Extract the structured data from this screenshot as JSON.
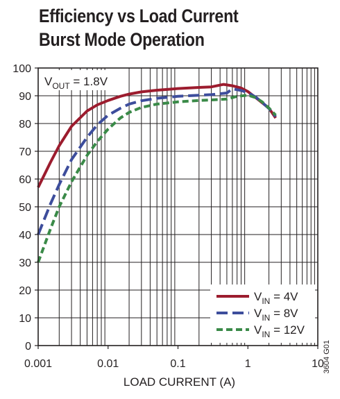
{
  "header": {
    "title_line1": "Efficiency vs Load Current",
    "title_line2": "Burst Mode Operation"
  },
  "chart_data": {
    "type": "line",
    "x_scale": "log",
    "xlim": [
      0.001,
      10
    ],
    "ylim": [
      0,
      100
    ],
    "grid": true,
    "xlabel": "LOAD CURRENT (A)",
    "ylabel": "",
    "x_ticks": [
      "0.001",
      "0.01",
      "0.1",
      "1",
      "10"
    ],
    "y_ticks": [
      "0",
      "10",
      "20",
      "30",
      "40",
      "50",
      "60",
      "70",
      "80",
      "90",
      "100"
    ],
    "annotation": {
      "prefix": "V",
      "sub": "OUT",
      "suffix": " = 1.8V"
    },
    "figure_id": "3604 G01",
    "legend_position": "bottom-right",
    "series": [
      {
        "name": "VIN = 4V",
        "name_prefix": "V",
        "name_sub": "IN",
        "name_suffix": " = 4V",
        "color": "#9c1c2e",
        "style": "solid",
        "x": [
          0.001,
          0.0015,
          0.002,
          0.003,
          0.005,
          0.007,
          0.01,
          0.015,
          0.02,
          0.03,
          0.05,
          0.1,
          0.2,
          0.3,
          0.45,
          0.6,
          0.8,
          1.0,
          1.3,
          1.6,
          2.0,
          2.5
        ],
        "y": [
          57,
          66,
          72,
          79,
          84.5,
          86.7,
          88.3,
          89.8,
          90.6,
          91.4,
          92,
          92.6,
          93,
          93.2,
          94.1,
          93.6,
          92.8,
          91.5,
          89.3,
          87.5,
          85.5,
          82
        ]
      },
      {
        "name": "VIN = 8V",
        "name_prefix": "V",
        "name_sub": "IN",
        "name_suffix": " = 8V",
        "color": "#3d4d9c",
        "style": "dashed",
        "x": [
          0.001,
          0.0015,
          0.002,
          0.003,
          0.005,
          0.007,
          0.01,
          0.015,
          0.02,
          0.03,
          0.05,
          0.1,
          0.2,
          0.3,
          0.5,
          0.6,
          0.8,
          1.0,
          1.3,
          1.6,
          2.0,
          2.5
        ],
        "y": [
          40,
          51,
          58,
          67,
          75,
          79.5,
          83,
          85.5,
          87,
          88.2,
          89.1,
          89.8,
          90.2,
          90.4,
          91,
          92.5,
          91.9,
          91.1,
          89.5,
          87.6,
          85.4,
          82.5
        ]
      },
      {
        "name": "VIN = 12V",
        "name_prefix": "V",
        "name_sub": "IN",
        "name_suffix": " = 12V",
        "color": "#3a8a48",
        "style": "dashed",
        "x": [
          0.001,
          0.0015,
          0.002,
          0.003,
          0.005,
          0.007,
          0.01,
          0.015,
          0.02,
          0.03,
          0.05,
          0.1,
          0.2,
          0.3,
          0.5,
          0.7,
          1.0,
          1.3,
          1.6,
          2.0,
          2.5
        ],
        "y": [
          30,
          42,
          50,
          59,
          68.5,
          73.5,
          78,
          82,
          84,
          85.8,
          87,
          87.8,
          88.3,
          88.5,
          88.8,
          89.8,
          90.2,
          89.3,
          87.8,
          85.6,
          83
        ]
      }
    ]
  }
}
